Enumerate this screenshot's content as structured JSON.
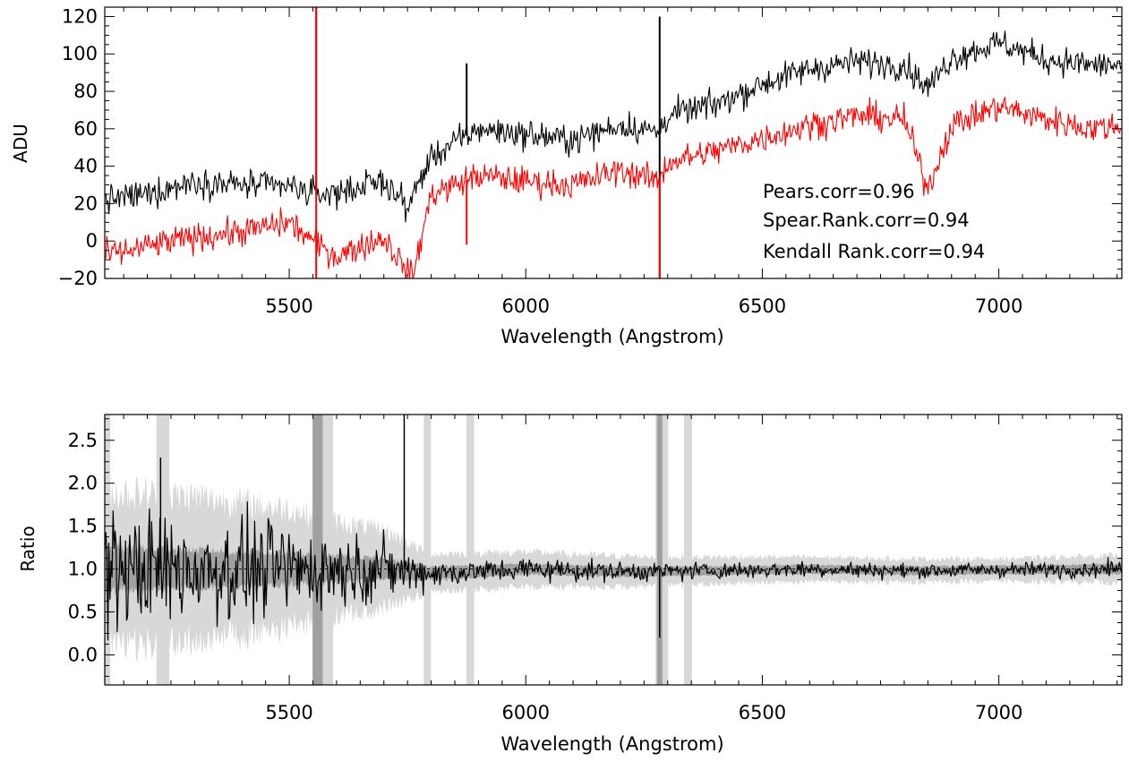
{
  "chart_data": [
    {
      "type": "line",
      "title": "",
      "xlabel": "Wavelength (Angstrom)",
      "ylabel": "ADU",
      "xlim": [
        5110,
        7260
      ],
      "ylim": [
        -20,
        125
      ],
      "xticks": [
        5500,
        6000,
        6500,
        7000
      ],
      "yticks": [
        -20,
        0,
        20,
        40,
        60,
        80,
        100,
        120
      ],
      "grid": false,
      "legend": "none",
      "annotations": [
        "Pears.corr=0.96",
        "Spear.Rank.corr=0.94",
        "Kendall Rank.corr=0.94"
      ],
      "series": [
        {
          "color": "#000000",
          "x": [
            5110,
            5200,
            5300,
            5400,
            5500,
            5560,
            5600,
            5700,
            5750,
            5800,
            5900,
            6000,
            6100,
            6200,
            6280,
            6300,
            6400,
            6500,
            6600,
            6700,
            6800,
            6850,
            6900,
            7000,
            7100,
            7200,
            7260
          ],
          "values": [
            22,
            25,
            32,
            30,
            29,
            25,
            26,
            32,
            18,
            45,
            60,
            57,
            54,
            62,
            58,
            67,
            73,
            84,
            92,
            96,
            94,
            82,
            98,
            106,
            97,
            94,
            94
          ],
          "spikes": [
            {
              "x": 5557,
              "value": 125
            },
            {
              "x": 5875,
              "value": 95
            },
            {
              "x": 6283,
              "value": 120
            },
            {
              "x": 6283,
              "value": -20
            }
          ]
        },
        {
          "color": "#ff0000",
          "x": [
            5110,
            5200,
            5300,
            5400,
            5500,
            5560,
            5600,
            5700,
            5760,
            5800,
            5900,
            6000,
            6100,
            6200,
            6280,
            6300,
            6400,
            6500,
            6600,
            6700,
            6800,
            6850,
            6900,
            7000,
            7100,
            7200,
            7260
          ],
          "values": [
            -8,
            -3,
            2,
            5,
            10,
            -2,
            -8,
            2,
            -20,
            25,
            35,
            32,
            30,
            38,
            32,
            42,
            48,
            55,
            62,
            67,
            65,
            28,
            62,
            72,
            65,
            60,
            62
          ],
          "spikes": [
            {
              "x": 5557,
              "value": 125
            },
            {
              "x": 5557,
              "value": -20
            },
            {
              "x": 5875,
              "value": -2
            },
            {
              "x": 6283,
              "value": -20
            }
          ]
        }
      ]
    },
    {
      "type": "line",
      "title": "",
      "xlabel": "Wavelength (Angstrom)",
      "ylabel": "Ratio",
      "xlim": [
        5110,
        7260
      ],
      "ylim": [
        -0.35,
        2.8
      ],
      "xticks": [
        5500,
        6000,
        6500,
        7000
      ],
      "yticks": [
        0.0,
        0.5,
        1.0,
        1.5,
        2.0,
        2.5
      ],
      "grid": false,
      "legend": "none",
      "reference_line": 1.0,
      "series": [
        {
          "color": "#000000",
          "x": [
            5110,
            5300,
            5500,
            5600,
            5700,
            5800,
            5900,
            6000,
            6200,
            6400,
            6600,
            6800,
            7000,
            7260
          ],
          "center": [
            1.0,
            1.0,
            1.0,
            1.0,
            1.0,
            0.95,
            0.97,
            1.0,
            0.97,
            0.98,
            1.0,
            0.98,
            0.99,
            1.0
          ],
          "noise": [
            0.5,
            0.45,
            0.38,
            0.3,
            0.25,
            0.12,
            0.1,
            0.1,
            0.08,
            0.07,
            0.07,
            0.06,
            0.06,
            0.07
          ],
          "spikes": [
            {
              "x": 5743,
              "value": 2.8
            },
            {
              "x": 5228,
              "value": 2.3
            },
            {
              "x": 6283,
              "value": 0.2
            }
          ]
        }
      ],
      "band_outer": {
        "color": "#d8d8d8",
        "x": [
          5110,
          5300,
          5500,
          5600,
          5700,
          5800,
          5900,
          6000,
          6200,
          6400,
          6600,
          6800,
          7000,
          7260
        ],
        "half_width": [
          0.9,
          0.85,
          0.7,
          0.55,
          0.45,
          0.22,
          0.22,
          0.2,
          0.18,
          0.16,
          0.14,
          0.14,
          0.13,
          0.16
        ]
      },
      "band_inner": {
        "color": "#a0a0a0",
        "x": [
          5110,
          5300,
          5500,
          5600,
          5700,
          5800,
          5900,
          6000,
          6200,
          6400,
          6600,
          6800,
          7000,
          7260
        ],
        "half_width": [
          0.25,
          0.22,
          0.18,
          0.15,
          0.12,
          0.08,
          0.07,
          0.06,
          0.06,
          0.05,
          0.05,
          0.05,
          0.05,
          0.06
        ]
      },
      "outer_band_bursts": [
        5115,
        5225,
        5240,
        5560,
        5570,
        5580,
        5790,
        5880,
        6280,
        6290,
        6340
      ],
      "inner_band_bursts": [
        5555,
        5565,
        6283
      ]
    }
  ]
}
